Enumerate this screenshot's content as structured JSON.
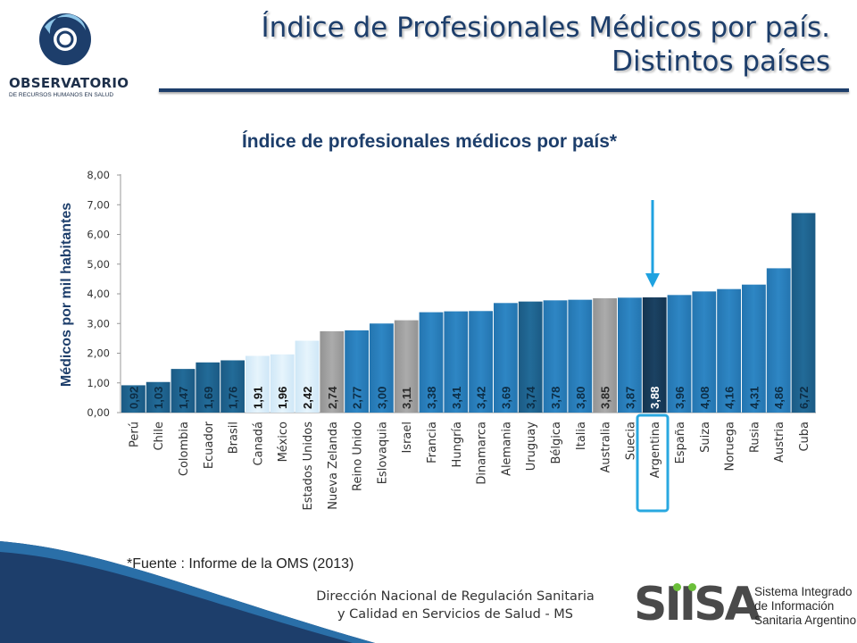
{
  "slide": {
    "title_line1": "Índice de Profesionales Médicos por país.",
    "title_line2": "Distintos países"
  },
  "logo": {
    "name": "OBSERVATORIO",
    "sub": "DE RECURSOS HUMANOS EN SALUD"
  },
  "source_note": "*Fuente : Informe de la OMS (2013)",
  "footer": {
    "line1": "Dirección Nacional de Regulación Sanitaria",
    "line2": "y Calidad en Servicios de Salud - MS",
    "siisa_mark": "SIISA",
    "siisa_line1": "Sistema Integrado",
    "siisa_line2": "de Información",
    "siisa_line3": "Sanitaria Argentino"
  },
  "colors": {
    "title": "#1d3e6b",
    "bar_dark": "#1d5c85",
    "bar_blue": "#2a7fbb",
    "bar_light": "#d9edf9",
    "bar_gray": "#9e9e9e",
    "bar_highlight": "#163a5a",
    "arrow": "#1fa2e0",
    "highlight_box": "#29a8e0"
  },
  "chart_data": {
    "type": "bar",
    "title": "Índice de profesionales médicos por país*",
    "ylabel": "Médicos por mil habitantes",
    "xlabel": "",
    "ylim": [
      0,
      8
    ],
    "yticks": [
      "0,00",
      "1,00",
      "2,00",
      "3,00",
      "4,00",
      "5,00",
      "6,00",
      "7,00",
      "8,00"
    ],
    "grid": false,
    "highlight_category": "Argentina",
    "categories": [
      "Perú",
      "Chile",
      "Colombia",
      "Ecuador",
      "Brasil",
      "Canadá",
      "México",
      "Estados Unidos",
      "Nueva Zelanda",
      "Reino Unido",
      "Eslovaquia",
      "Israel",
      "Francia",
      "Hungría",
      "Dinamarca",
      "Alemania",
      "Uruguay",
      "Bélgica",
      "Italia",
      "Australia",
      "Suecia",
      "Argentina",
      "España",
      "Suiza",
      "Noruega",
      "Rusia",
      "Austria",
      "Cuba"
    ],
    "values": [
      0.92,
      1.03,
      1.47,
      1.69,
      1.76,
      1.91,
      1.96,
      2.42,
      2.74,
      2.77,
      3.0,
      3.11,
      3.38,
      3.41,
      3.42,
      3.69,
      3.74,
      3.78,
      3.8,
      3.85,
      3.87,
      3.88,
      3.96,
      4.08,
      4.16,
      4.31,
      4.86,
      6.72
    ],
    "value_labels": [
      "0,92",
      "1,03",
      "1,47",
      "1,69",
      "1,76",
      "1,91",
      "1,96",
      "2,42",
      "2,74",
      "2,77",
      "3,00",
      "3,11",
      "3,38",
      "3,41",
      "3,42",
      "3,69",
      "3,74",
      "3,78",
      "3,80",
      "3,85",
      "3,87",
      "3,88",
      "3,96",
      "4,08",
      "4,16",
      "4,31",
      "4,86",
      "6,72"
    ],
    "bar_colors": [
      "dark",
      "dark",
      "dark",
      "dark",
      "dark",
      "light",
      "light",
      "light",
      "gray",
      "blue",
      "blue",
      "gray",
      "blue",
      "blue",
      "blue",
      "blue",
      "dark",
      "blue",
      "blue",
      "gray",
      "blue",
      "highlight",
      "blue",
      "blue",
      "blue",
      "blue",
      "blue",
      "dark"
    ]
  }
}
